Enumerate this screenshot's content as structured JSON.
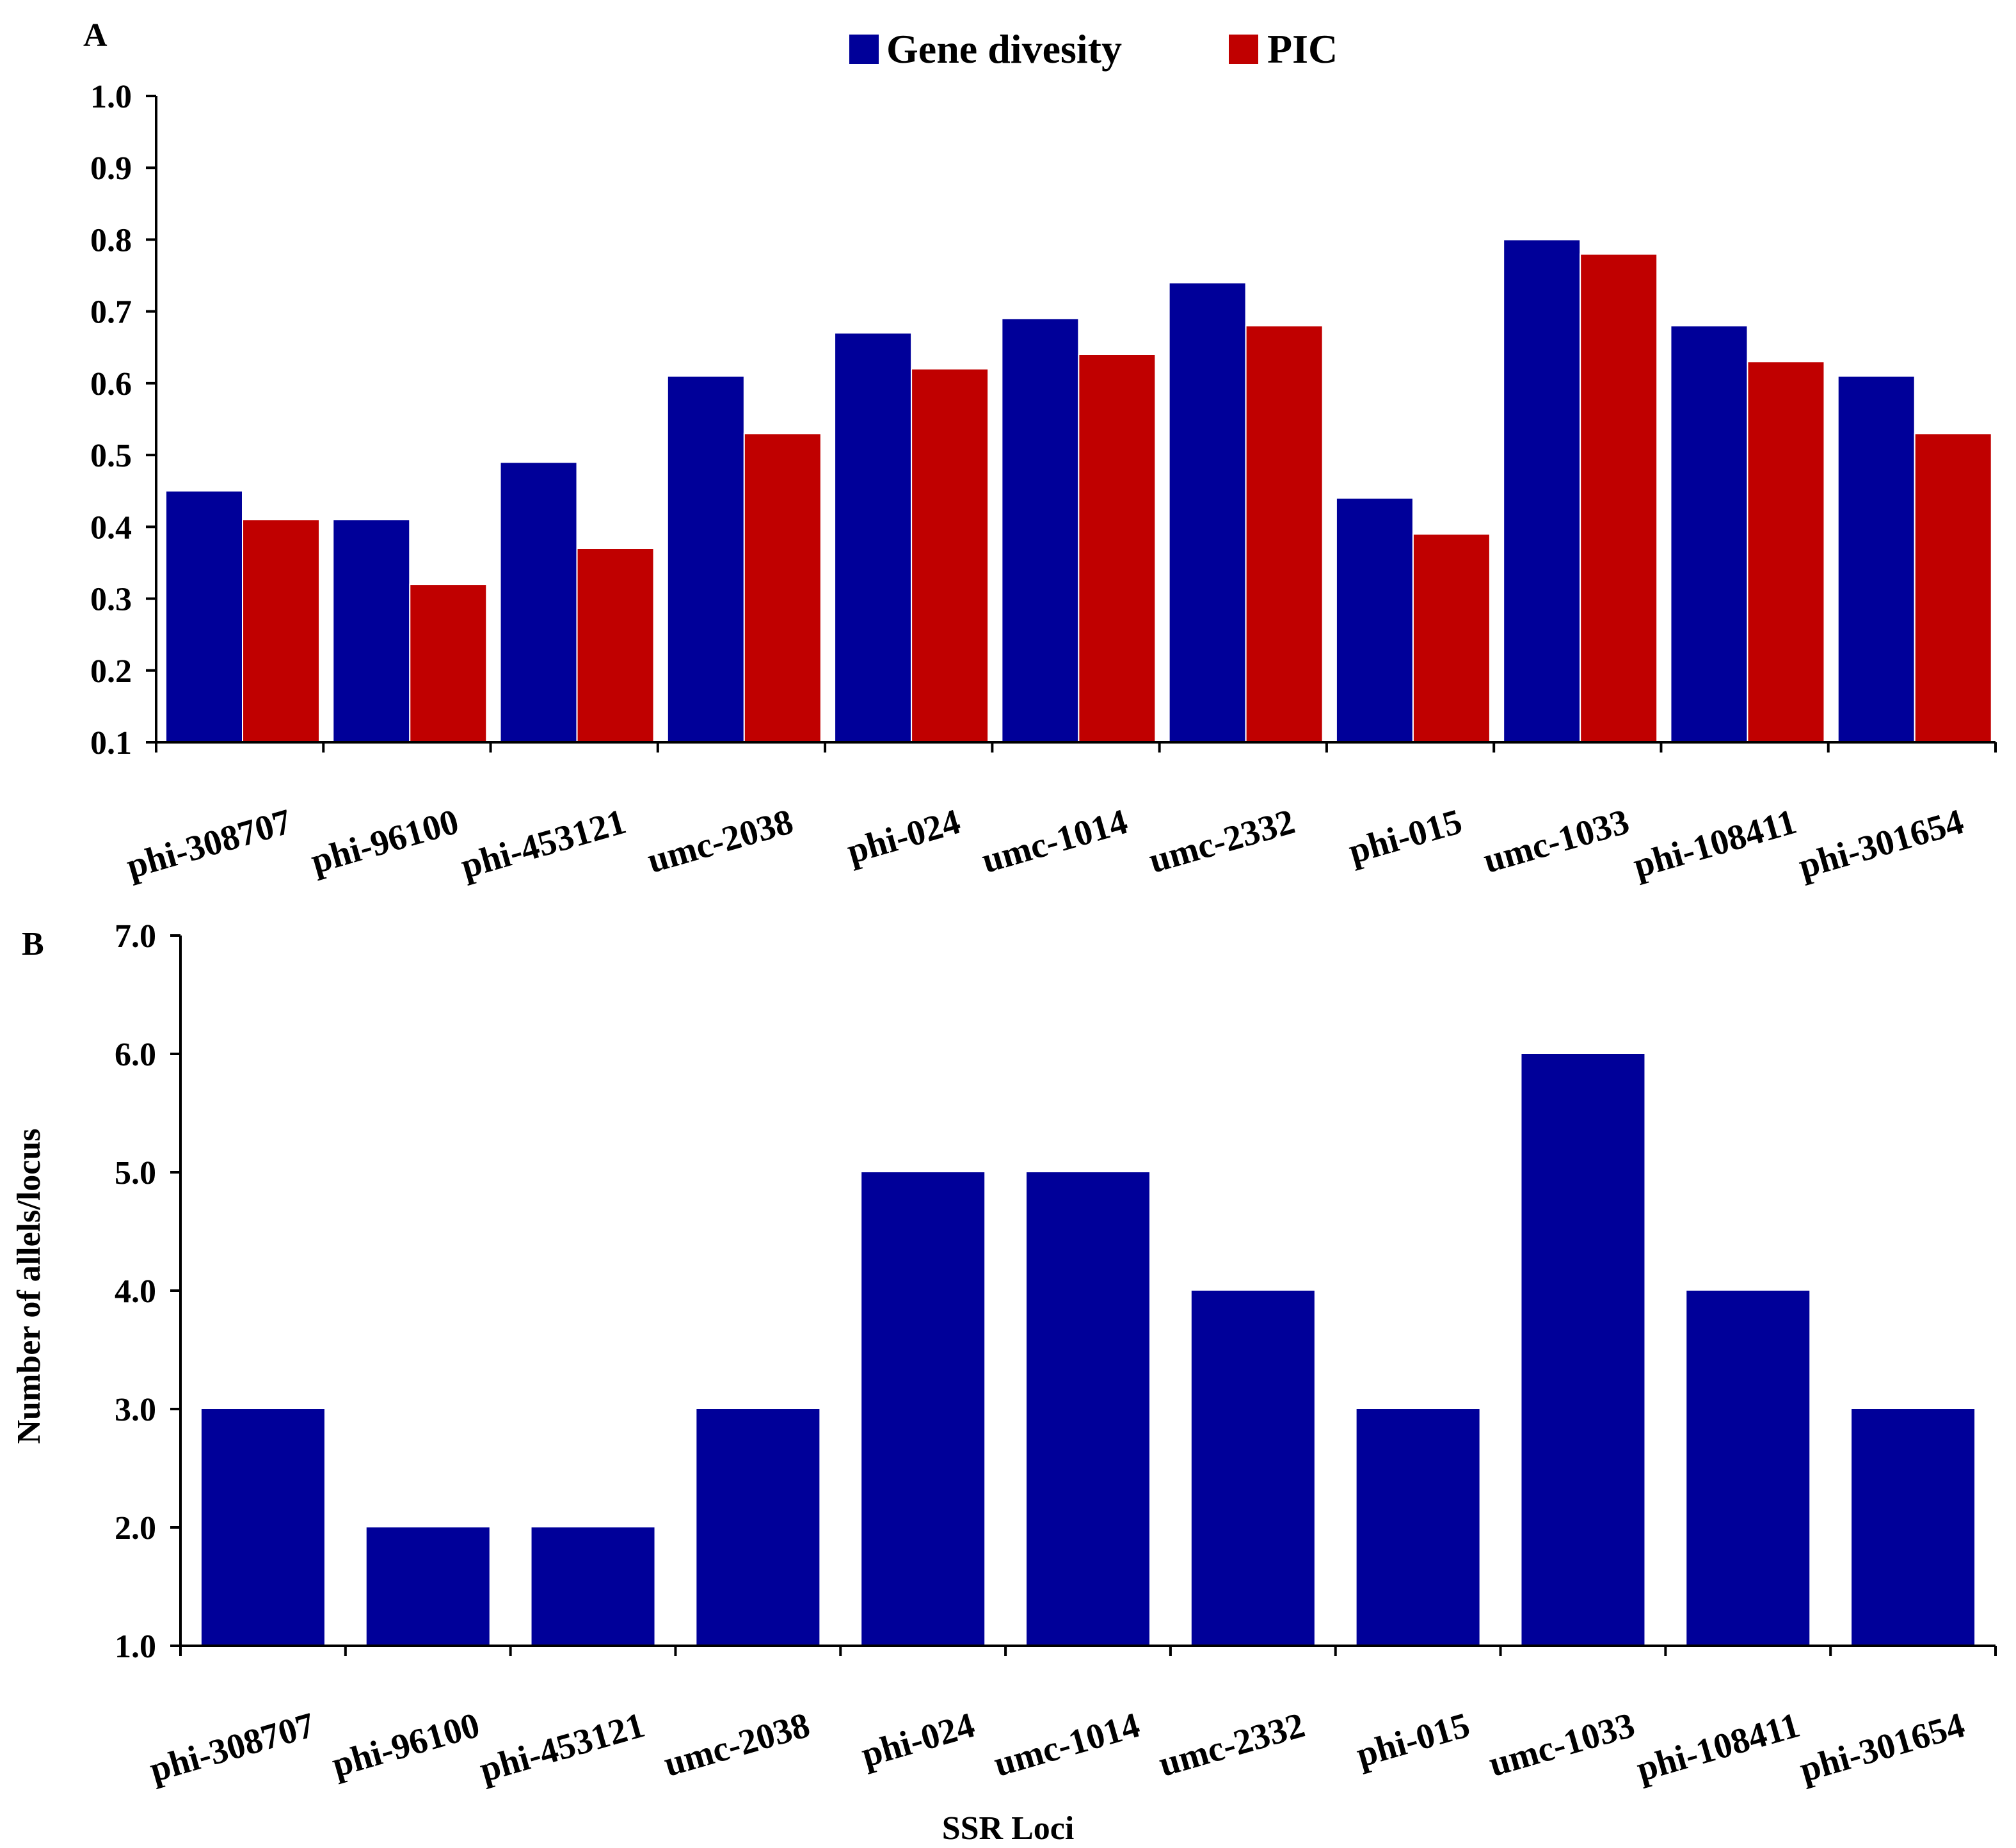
{
  "colors": {
    "gene_diversity": "#000099",
    "pic": "#c00000",
    "alleles": "#000099",
    "axis": "#000000"
  },
  "chart_data": [
    {
      "type": "bar",
      "panel": "A",
      "title": "",
      "xlabel": "",
      "ylabel": "",
      "ylim": [
        0.1,
        1.0
      ],
      "yticks": [
        "0.1",
        "0.2",
        "0.3",
        "0.4",
        "0.5",
        "0.6",
        "0.7",
        "0.8",
        "0.9",
        "1.0"
      ],
      "legend_position": "top-center",
      "categories": [
        "phi-308707",
        "phi-96100",
        "phi-453121",
        "umc-2038",
        "phi-024",
        "umc-1014",
        "umc-2332",
        "phi-015",
        "umc-1033",
        "phi-108411",
        "phi-301654"
      ],
      "series": [
        {
          "name": "Gene divesity",
          "color": "#000099",
          "values": [
            0.45,
            0.41,
            0.49,
            0.61,
            0.67,
            0.69,
            0.74,
            0.44,
            0.8,
            0.68,
            0.61
          ]
        },
        {
          "name": "PIC",
          "color": "#c00000",
          "values": [
            0.41,
            0.32,
            0.37,
            0.53,
            0.62,
            0.64,
            0.68,
            0.39,
            0.78,
            0.63,
            0.53
          ]
        }
      ]
    },
    {
      "type": "bar",
      "panel": "B",
      "title": "",
      "xlabel": "SSR Loci",
      "ylabel": "Number of allels/locus",
      "ylim": [
        1.0,
        7.0
      ],
      "yticks": [
        "1.0",
        "2.0",
        "3.0",
        "4.0",
        "5.0",
        "6.0",
        "7.0"
      ],
      "categories": [
        "phi-308707",
        "phi-96100",
        "phi-453121",
        "umc-2038",
        "phi-024",
        "umc-1014",
        "umc-2332",
        "phi-015",
        "umc-1033",
        "phi-108411",
        "phi-301654"
      ],
      "series": [
        {
          "name": "Number of allels/locus",
          "color": "#000099",
          "values": [
            3,
            2,
            2,
            3,
            5,
            5,
            4,
            3,
            6,
            4,
            3
          ]
        }
      ]
    }
  ]
}
